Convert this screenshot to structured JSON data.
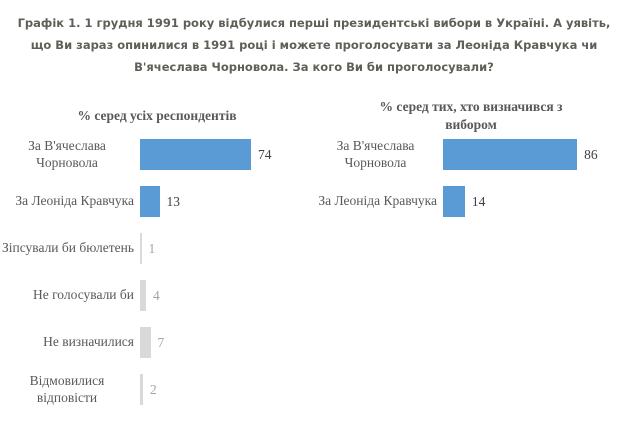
{
  "title": {
    "lines": [
      "Графік 1. 1 грудня 1991 року відбулися перші президентські вибори в Україні. А уявіть,",
      "що Ви зараз опинилися в 1991 році і можете проголосувати за Леоніда Кравчука чи",
      "В'ячеслава Чорновола. За кого Ви би проголосували?"
    ]
  },
  "colors": {
    "title_text": "#5f5f58",
    "chart_text": "#595959",
    "value_dark": "#404040",
    "value_muted": "#a3a3a3",
    "bar_blue": "#5b9bd5",
    "bar_gray": "#d9d9d9",
    "background": "#ffffff"
  },
  "chart_data": [
    {
      "type": "bar",
      "orientation": "horizontal",
      "title": "% серед усіх респондентів",
      "categories": [
        "За В'ячеслава Чорновола",
        "За Леоніда Кравчука",
        "Зіпсували би бюлетень",
        "Не голосували би",
        "Не визначилися",
        "Відмовилися відповісти"
      ],
      "values": [
        74,
        13,
        1,
        4,
        7,
        2
      ],
      "bar_colors": [
        "#5b9bd5",
        "#5b9bd5",
        "#d9d9d9",
        "#d9d9d9",
        "#d9d9d9",
        "#d9d9d9"
      ],
      "xlim": [
        0,
        100
      ],
      "data_labels": true,
      "grid": false,
      "legend": "none"
    },
    {
      "type": "bar",
      "orientation": "horizontal",
      "title": "% серед тих, хто визначився з вибором",
      "categories": [
        "За В'ячеслава Чорновола",
        "За Леоніда Кравчука"
      ],
      "values": [
        86,
        14
      ],
      "bar_colors": [
        "#5b9bd5",
        "#5b9bd5"
      ],
      "xlim": [
        0,
        100
      ],
      "data_labels": true,
      "grid": false,
      "legend": "none"
    }
  ]
}
